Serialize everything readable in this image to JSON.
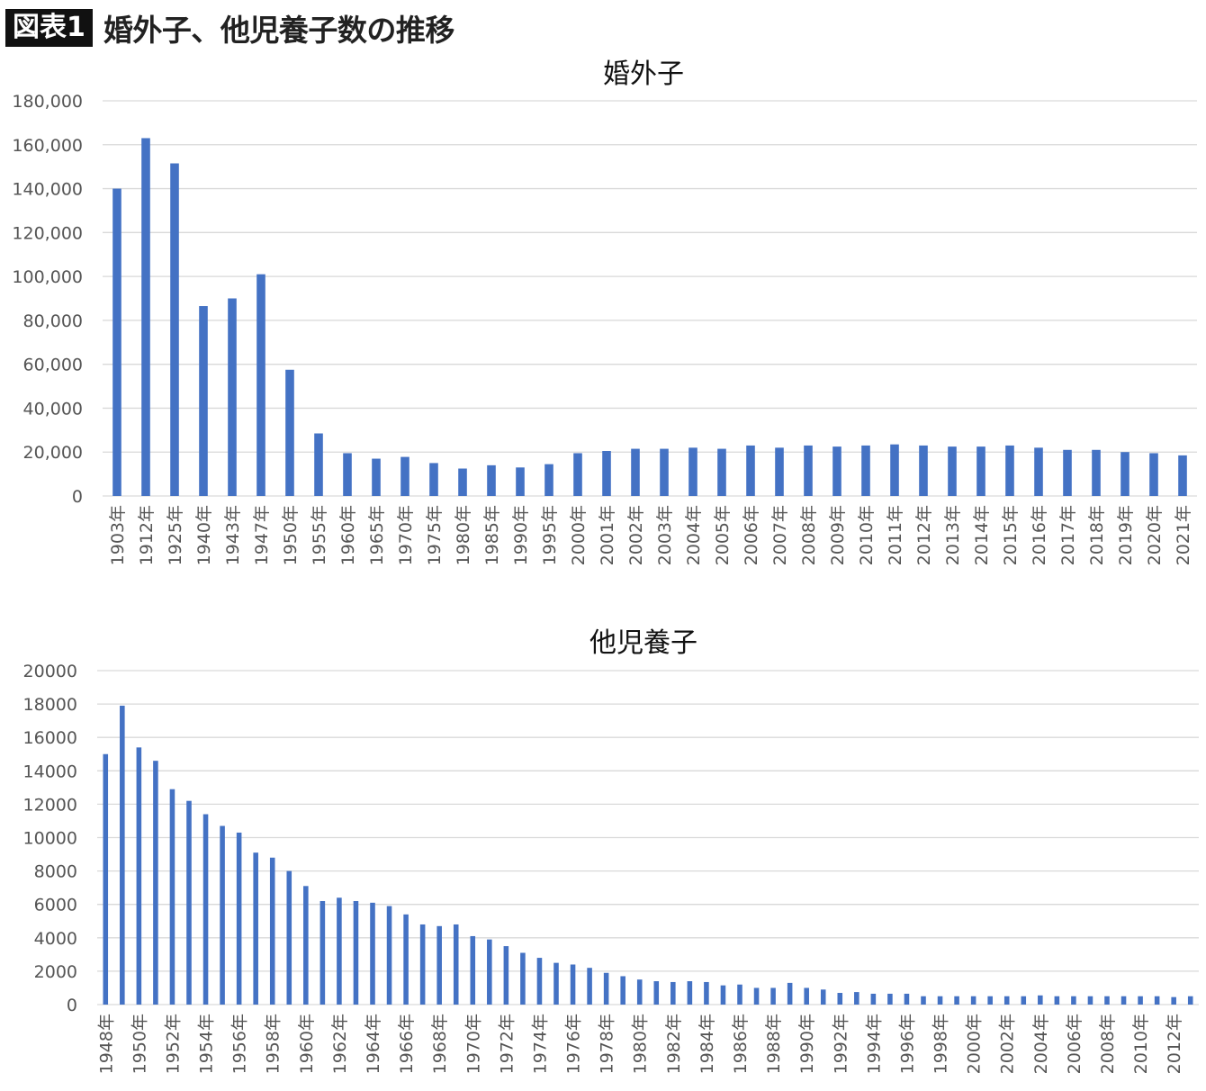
{
  "figure": {
    "badge": "図表1",
    "title": "婚外子、他児養子数の推移"
  },
  "colors": {
    "bar": "#4472c4",
    "grid": "#d9d9d9"
  },
  "chart_data": [
    {
      "type": "bar",
      "title": "婚外子",
      "ylim": [
        0,
        180000
      ],
      "yticks": [
        "0",
        "20,000",
        "40,000",
        "60,000",
        "80,000",
        "100,000",
        "120,000",
        "140,000",
        "160,000",
        "180,000"
      ],
      "grid": true,
      "categories": [
        "1903年",
        "1912年",
        "1925年",
        "1940年",
        "1943年",
        "1947年",
        "1950年",
        "1955年",
        "1960年",
        "1965年",
        "1970年",
        "1975年",
        "1980年",
        "1985年",
        "1990年",
        "1995年",
        "2000年",
        "2001年",
        "2002年",
        "2003年",
        "2004年",
        "2005年",
        "2006年",
        "2007年",
        "2008年",
        "2009年",
        "2010年",
        "2011年",
        "2012年",
        "2013年",
        "2014年",
        "2015年",
        "2016年",
        "2017年",
        "2018年",
        "2019年",
        "2020年",
        "2021年"
      ],
      "values": [
        140000,
        163000,
        151500,
        86500,
        90000,
        101000,
        57500,
        28500,
        19500,
        17000,
        17800,
        15000,
        12500,
        14000,
        13000,
        14500,
        19500,
        20500,
        21500,
        21500,
        22000,
        21500,
        23000,
        22000,
        23000,
        22500,
        23000,
        23500,
        23000,
        22500,
        22500,
        23000,
        22000,
        21000,
        21000,
        20000,
        19500,
        18500
      ]
    },
    {
      "type": "bar",
      "title": "他児養子",
      "ylim": [
        0,
        20000
      ],
      "yticks": [
        "0",
        "2000",
        "4000",
        "6000",
        "8000",
        "10000",
        "12000",
        "14000",
        "16000",
        "18000",
        "20000"
      ],
      "grid": true,
      "categories": [
        "1948年",
        "1949年",
        "1950年",
        "1951年",
        "1952年",
        "1953年",
        "1954年",
        "1955年",
        "1956年",
        "1957年",
        "1958年",
        "1959年",
        "1960年",
        "1961年",
        "1962年",
        "1963年",
        "1964年",
        "1965年",
        "1966年",
        "1967年",
        "1968年",
        "1969年",
        "1970年",
        "1971年",
        "1972年",
        "1973年",
        "1974年",
        "1975年",
        "1976年",
        "1977年",
        "1978年",
        "1979年",
        "1980年",
        "1981年",
        "1982年",
        "1983年",
        "1984年",
        "1985年",
        "1986年",
        "1987年",
        "1988年",
        "1989年",
        "1990年",
        "1991年",
        "1992年",
        "1993年",
        "1994年",
        "1995年",
        "1996年",
        "1997年",
        "1998年",
        "1999年",
        "2000年",
        "2001年",
        "2002年",
        "2003年",
        "2004年",
        "2005年",
        "2006年",
        "2007年",
        "2008年",
        "2009年",
        "2010年",
        "2011年",
        "2012年",
        "2013年"
      ],
      "visible_x_labels": [
        "1948年",
        "1950年",
        "1952年",
        "1954年",
        "1956年",
        "1958年",
        "1960年",
        "1962年",
        "1964年",
        "1966年",
        "1968年",
        "1970年",
        "1972年",
        "1974年",
        "1976年",
        "1978年",
        "1980年",
        "1982年",
        "1984年",
        "1986年",
        "1988年",
        "1990年",
        "1992年",
        "1994年",
        "1996年",
        "1998年",
        "2000年",
        "2002年",
        "2004年",
        "2006年",
        "2008年",
        "2010年",
        "2012年"
      ],
      "values": [
        15000,
        17900,
        15400,
        14600,
        12900,
        12200,
        11400,
        10700,
        10300,
        9100,
        8800,
        8000,
        7100,
        6200,
        6400,
        6200,
        6100,
        5900,
        5400,
        4800,
        4700,
        4800,
        4100,
        3900,
        3500,
        3100,
        2800,
        2500,
        2400,
        2200,
        1900,
        1700,
        1500,
        1400,
        1350,
        1400,
        1350,
        1150,
        1200,
        1000,
        1000,
        1300,
        1000,
        900,
        700,
        750,
        650,
        650,
        650,
        500,
        500,
        500,
        500,
        500,
        500,
        500,
        550,
        500,
        500,
        500,
        500,
        500,
        500,
        500,
        450,
        500
      ]
    }
  ]
}
